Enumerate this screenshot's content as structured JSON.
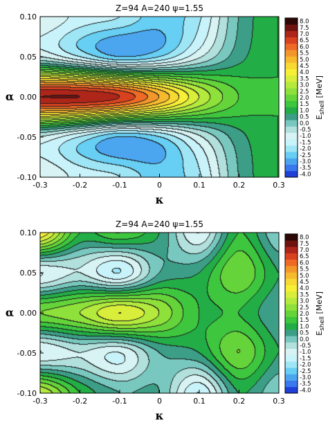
{
  "chart_data": [
    {
      "type": "heatmap",
      "title": "Z=94  A=240  ψ=1.55",
      "xlabel": "κ",
      "ylabel": "α",
      "colorbar_label": "E_shell [MeV]",
      "colorbar_label_parts": [
        "E",
        "shell",
        " [MeV]"
      ],
      "xlim": [
        -0.3,
        0.3
      ],
      "ylim": [
        -0.1,
        0.1
      ],
      "xticks": [
        "-0.3",
        "-0.2",
        "-0.1",
        "0",
        "0.1",
        "0.2",
        "0.3"
      ],
      "yticks": [
        "0.10",
        "0.05",
        "0.00",
        "-0.05",
        "-0.10"
      ],
      "colorbar_ticks": [
        "8.0",
        "7.5",
        "7.0",
        "6.5",
        "6.0",
        "5.5",
        "5.0",
        "4.5",
        "4.0",
        "3.5",
        "3.0",
        "2.5",
        "2.0",
        "1.5",
        "1.0",
        "0.5",
        "0.0",
        "-0.5",
        "-1.0",
        "-1.5",
        "-2.0",
        "-2.5",
        "-3.0",
        "-3.5",
        "-4.0"
      ],
      "colorbar_range": [
        -4.0,
        8.0
      ],
      "colorbar_step": 0.5,
      "x": [
        -0.3,
        -0.2,
        -0.1,
        0.0,
        0.1,
        0.2,
        0.3
      ],
      "y": [
        0.1,
        0.05,
        0.0,
        -0.05,
        -0.1
      ],
      "z": [
        [
          -0.5,
          -1.2,
          -1.5,
          -2.3,
          -1.6,
          0.5,
          1.5
        ],
        [
          -0.5,
          -1.5,
          -2.5,
          -2.0,
          -0.6,
          0.8,
          1.5
        ],
        [
          7.5,
          7.5,
          7.0,
          5.5,
          3.5,
          2.0,
          1.5
        ],
        [
          -0.5,
          -1.5,
          -2.5,
          -2.0,
          -0.6,
          0.8,
          1.5
        ],
        [
          -0.5,
          -1.2,
          -1.5,
          -2.3,
          -1.6,
          0.5,
          1.5
        ]
      ]
    },
    {
      "type": "heatmap",
      "title": "Z=94  A=240  ψ=1.55",
      "xlabel": "κ",
      "ylabel": "α",
      "colorbar_label": "E_shell [MeV]",
      "colorbar_label_parts": [
        "E",
        "shell",
        " [MeV]"
      ],
      "xlim": [
        -0.3,
        0.3
      ],
      "ylim": [
        -0.1,
        0.1
      ],
      "xticks": [
        "-0.3",
        "-0.2",
        "-0.1",
        "0",
        "0.1",
        "0.2",
        "0.3"
      ],
      "yticks": [
        "0.10",
        "0.05",
        "0.00",
        "-0.05",
        "-0.10"
      ],
      "colorbar_ticks": [
        "8.0",
        "7.5",
        "7.0",
        "6.5",
        "6.0",
        "5.5",
        "5.0",
        "4.5",
        "4.0",
        "3.5",
        "3.0",
        "2.5",
        "2.0",
        "1.5",
        "1.0",
        "0.5",
        "0.0",
        "-0.5",
        "-1.0",
        "-1.5",
        "-2.0",
        "-2.5",
        "-3.0",
        "-3.5",
        "-4.0"
      ],
      "colorbar_range": [
        -4.0,
        8.0
      ],
      "colorbar_step": 0.5,
      "x": [
        -0.3,
        -0.2,
        -0.1,
        0.0,
        0.1,
        0.2,
        0.3
      ],
      "y": [
        0.1,
        0.05,
        0.0,
        -0.05,
        -0.1
      ],
      "z": [
        [
          4.5,
          1.5,
          2.0,
          1.0,
          -1.0,
          1.5,
          0.0
        ],
        [
          -1.0,
          -0.5,
          -1.5,
          0.5,
          1.0,
          2.5,
          1.0
        ],
        [
          2.5,
          3.0,
          4.0,
          3.0,
          1.5,
          1.5,
          0.5
        ],
        [
          -1.0,
          -0.5,
          -1.0,
          0.5,
          1.0,
          2.5,
          1.0
        ],
        [
          3.5,
          1.5,
          0.5,
          0.5,
          -1.5,
          1.0,
          0.0
        ]
      ]
    }
  ],
  "colors": {
    "scale": [
      "#1f3fd6",
      "#3a78ee",
      "#4ba6ef",
      "#66cff3",
      "#9ee6f6",
      "#c9f3fa",
      "#d7f3f3",
      "#b2e0dc",
      "#78c8bf",
      "#3c9e86",
      "#22ad46",
      "#3ec63e",
      "#64d43a",
      "#8ee03a",
      "#b4e93d",
      "#d9ee3a",
      "#f7ee36",
      "#f8d833",
      "#f7ba2e",
      "#f3972a",
      "#ee6b25",
      "#d9421f",
      "#ae2519",
      "#6e1410",
      "#2e0806"
    ],
    "contour": "#1a1a1a"
  }
}
